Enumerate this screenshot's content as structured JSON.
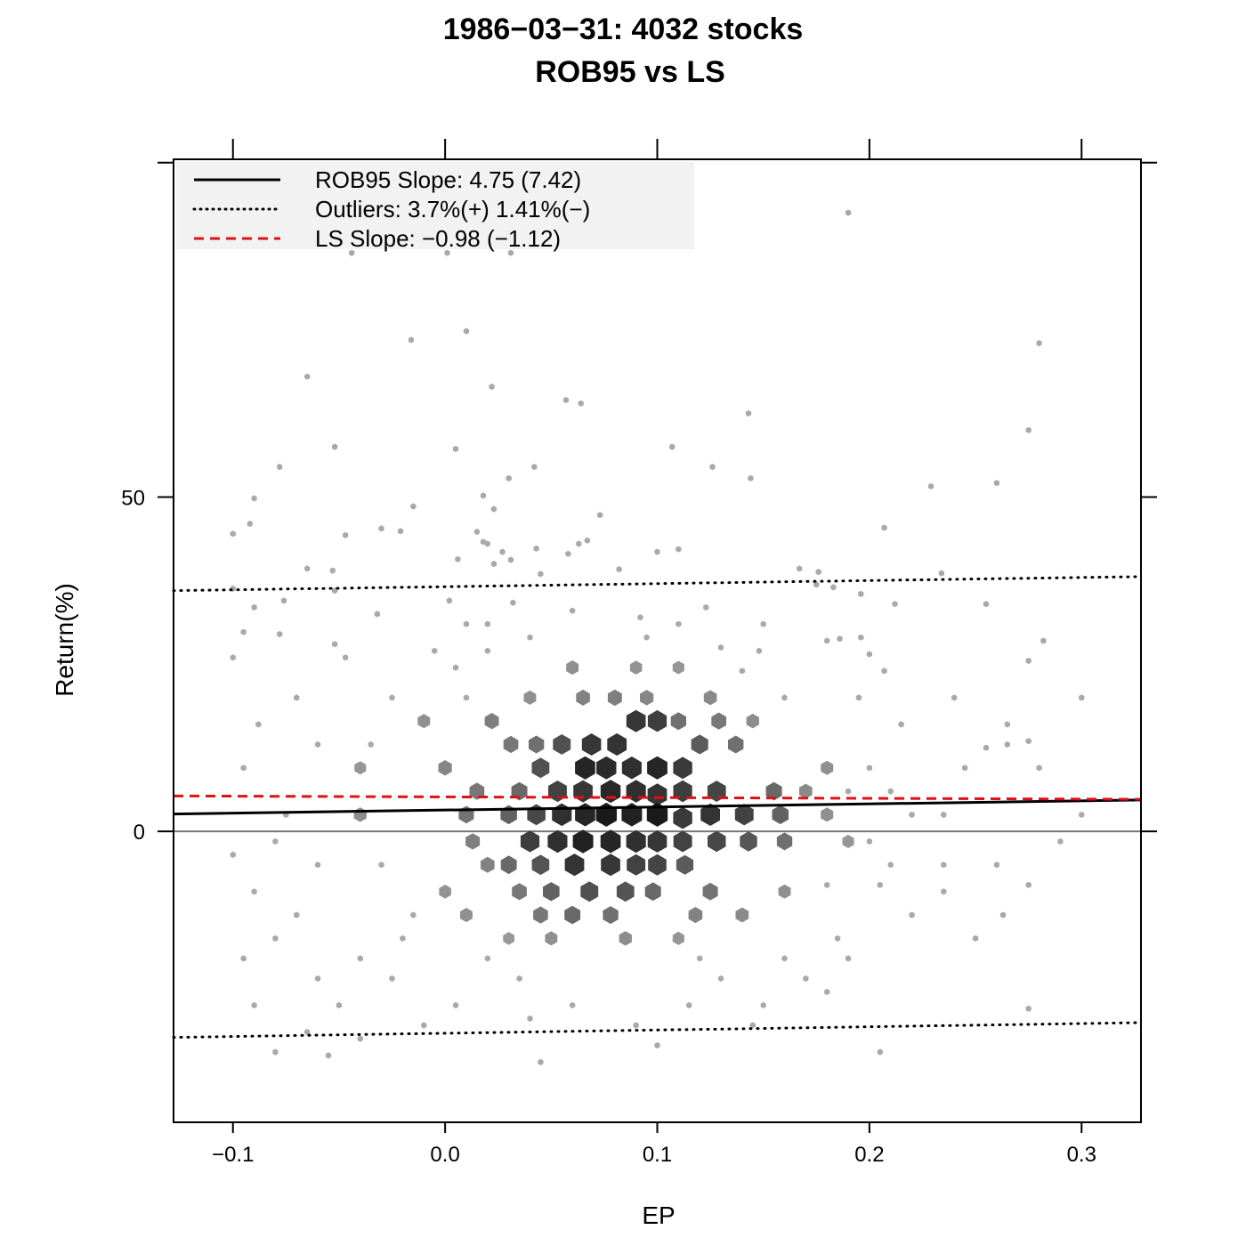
{
  "chart_data": {
    "type": "scatter",
    "title": [
      "1986−03−31: 4032 stocks",
      "ROB95 vs LS"
    ],
    "xlabel": "EP",
    "ylabel": "Return(%)",
    "xlim": [
      -0.128,
      0.328
    ],
    "ylim": [
      -43.5,
      100.5
    ],
    "x_ticks": [
      -0.1,
      0.0,
      0.1,
      0.2,
      0.3
    ],
    "x_tick_labels": [
      "−0.1",
      "0.0",
      "0.1",
      "0.2",
      "0.3"
    ],
    "y_ticks": [
      0,
      50
    ],
    "y_tick_labels": [
      "0",
      "50"
    ],
    "y_axis_ticks_all": [
      0,
      50,
      100
    ],
    "zero_line": 0,
    "legend": {
      "position": "top-left",
      "background": "#f2f2f2",
      "entries": [
        {
          "label": "ROB95 Slope: 4.75 (7.42)",
          "style": "solid",
          "color": "#000000"
        },
        {
          "label": "Outliers: 3.7%(+)  1.41%(−)",
          "style": "dotted",
          "color": "#000000"
        },
        {
          "label": "LS Slope: −0.98 (−1.12)",
          "style": "dashed",
          "color": "#e0101a"
        }
      ]
    },
    "lines": {
      "rob95": {
        "x": [
          -0.128,
          0.328
        ],
        "y": [
          2.6,
          4.7
        ],
        "color": "#000000"
      },
      "ls": {
        "x": [
          -0.128,
          0.328
        ],
        "y": [
          5.3,
          4.8
        ],
        "color": "#e0101a"
      },
      "outlier_upper": {
        "x": [
          -0.128,
          0.328
        ],
        "y": [
          36.0,
          38.1
        ],
        "color": "#000000"
      },
      "outlier_lower": {
        "x": [
          -0.128,
          0.328
        ],
        "y": [
          -30.8,
          -28.6
        ],
        "color": "#000000"
      }
    },
    "hexbin": {
      "x_step": 0.01,
      "y_step": 2.76,
      "color_light": "#aaaaaa",
      "color_dark": "#1a1a1a",
      "max_count": 100,
      "cells": [
        [
          0.069,
          13.0,
          80
        ],
        [
          0.081,
          13.0,
          82
        ],
        [
          0.09,
          16.5,
          80
        ],
        [
          0.1,
          16.5,
          75
        ],
        [
          0.055,
          13.0,
          62
        ],
        [
          0.066,
          9.5,
          92
        ],
        [
          0.076,
          9.5,
          88
        ],
        [
          0.088,
          9.5,
          85
        ],
        [
          0.1,
          9.5,
          92
        ],
        [
          0.112,
          9.5,
          78
        ],
        [
          0.045,
          9.5,
          62
        ],
        [
          0.053,
          6.0,
          72
        ],
        [
          0.065,
          6.0,
          80
        ],
        [
          0.078,
          6.0,
          90
        ],
        [
          0.09,
          6.0,
          85
        ],
        [
          0.1,
          5.5,
          82
        ],
        [
          0.112,
          6.0,
          75
        ],
        [
          0.128,
          6.0,
          70
        ],
        [
          0.035,
          6.0,
          45
        ],
        [
          0.055,
          2.5,
          85
        ],
        [
          0.066,
          2.5,
          92
        ],
        [
          0.076,
          2.5,
          100
        ],
        [
          0.088,
          2.5,
          95
        ],
        [
          0.1,
          2.5,
          100
        ],
        [
          0.112,
          2.0,
          78
        ],
        [
          0.125,
          2.5,
          82
        ],
        [
          0.141,
          2.5,
          72
        ],
        [
          0.043,
          2.5,
          68
        ],
        [
          0.03,
          2.5,
          50
        ],
        [
          0.065,
          -1.5,
          95
        ],
        [
          0.078,
          -1.5,
          92
        ],
        [
          0.09,
          -1.5,
          85
        ],
        [
          0.1,
          -1.5,
          80
        ],
        [
          0.112,
          -1.5,
          72
        ],
        [
          0.053,
          -1.5,
          85
        ],
        [
          0.04,
          -1.5,
          75
        ],
        [
          0.128,
          -1.5,
          68
        ],
        [
          0.143,
          -1.5,
          58
        ],
        [
          0.061,
          -5.0,
          82
        ],
        [
          0.078,
          -5.0,
          80
        ],
        [
          0.09,
          -5.0,
          72
        ],
        [
          0.1,
          -5.0,
          70
        ],
        [
          0.045,
          -5.0,
          60
        ],
        [
          0.03,
          -5.0,
          45
        ],
        [
          0.113,
          -5.0,
          55
        ],
        [
          0.068,
          -9.0,
          62
        ],
        [
          0.085,
          -9.0,
          60
        ],
        [
          0.05,
          -9.0,
          50
        ],
        [
          0.098,
          -9.0,
          45
        ],
        [
          0.035,
          -9.0,
          35
        ],
        [
          0.125,
          -9.0,
          38
        ],
        [
          0.06,
          -12.5,
          45
        ],
        [
          0.078,
          -12.5,
          40
        ],
        [
          0.045,
          -12.5,
          35
        ],
        [
          0.022,
          16.5,
          30
        ],
        [
          0.031,
          13.0,
          35
        ],
        [
          0.043,
          13.0,
          40
        ],
        [
          0.12,
          13.0,
          55
        ],
        [
          0.137,
          13.0,
          40
        ],
        [
          0.11,
          16.5,
          40
        ],
        [
          0.129,
          16.5,
          35
        ],
        [
          0.155,
          6.0,
          45
        ],
        [
          0.158,
          2.5,
          50
        ],
        [
          0.16,
          -1.5,
          40
        ],
        [
          0.015,
          6.0,
          35
        ],
        [
          0.01,
          2.5,
          38
        ],
        [
          0.013,
          -1.5,
          30
        ],
        [
          0.02,
          -5.0,
          28
        ],
        [
          0.08,
          20.0,
          30
        ],
        [
          0.065,
          20.0,
          28
        ],
        [
          0.095,
          20.0,
          25
        ],
        [
          0.125,
          20.0,
          22
        ],
        [
          -0.01,
          16.5,
          18
        ],
        [
          -0.04,
          2.5,
          20
        ],
        [
          0.17,
          6.0,
          22
        ],
        [
          0.18,
          2.5,
          18
        ],
        [
          0.14,
          -12.5,
          22
        ],
        [
          0.01,
          -12.5,
          18
        ],
        [
          0.0,
          -9.0,
          16
        ],
        [
          0.16,
          -9.0,
          18
        ],
        [
          0.118,
          -12.5,
          28
        ],
        [
          0.0,
          9.5,
          25
        ],
        [
          0.18,
          9.5,
          18
        ],
        [
          0.145,
          16.5,
          20
        ],
        [
          0.04,
          20.0,
          18
        ],
        [
          0.06,
          24.5,
          18
        ],
        [
          0.09,
          24.5,
          16
        ],
        [
          0.11,
          24.5,
          14
        ],
        [
          0.085,
          -16.0,
          20
        ],
        [
          0.05,
          -16.0,
          18
        ],
        [
          0.11,
          -16.0,
          14
        ],
        [
          -0.04,
          9.5,
          14
        ],
        [
          0.19,
          -1.5,
          14
        ],
        [
          0.03,
          -16.0,
          12
        ]
      ],
      "points": [
        [
          0.19,
          92.5
        ],
        [
          -0.044,
          86.5
        ],
        [
          0.001,
          86.5
        ],
        [
          0.031,
          86.5
        ],
        [
          -0.016,
          73.5
        ],
        [
          0.01,
          74.8
        ],
        [
          0.28,
          73.0
        ],
        [
          -0.065,
          68.0
        ],
        [
          0.022,
          66.5
        ],
        [
          0.057,
          64.5
        ],
        [
          0.064,
          64.0
        ],
        [
          0.143,
          62.5
        ],
        [
          0.275,
          60.0
        ],
        [
          -0.052,
          57.5
        ],
        [
          0.005,
          57.2
        ],
        [
          0.107,
          57.5
        ],
        [
          -0.078,
          54.5
        ],
        [
          0.042,
          54.5
        ],
        [
          0.126,
          54.5
        ],
        [
          0.144,
          52.8
        ],
        [
          -0.09,
          49.8
        ],
        [
          0.229,
          51.6
        ],
        [
          0.26,
          52.1
        ],
        [
          0.03,
          52.8
        ],
        [
          0.018,
          50.2
        ],
        [
          -0.015,
          48.6
        ],
        [
          0.023,
          48.2
        ],
        [
          0.073,
          47.3
        ],
        [
          -0.1,
          44.5
        ],
        [
          -0.092,
          46.0
        ],
        [
          -0.047,
          44.3
        ],
        [
          -0.03,
          45.3
        ],
        [
          -0.021,
          44.9
        ],
        [
          0.015,
          44.8
        ],
        [
          0.207,
          45.4
        ],
        [
          0.067,
          43.5
        ],
        [
          0.063,
          43.0
        ],
        [
          0.018,
          43.3
        ],
        [
          0.02,
          43.0
        ],
        [
          0.043,
          42.3
        ],
        [
          0.11,
          42.2
        ],
        [
          0.1,
          41.8
        ],
        [
          0.027,
          41.8
        ],
        [
          0.058,
          41.5
        ],
        [
          0.006,
          40.7
        ],
        [
          0.031,
          40.6
        ],
        [
          -0.053,
          39.0
        ],
        [
          -0.065,
          39.3
        ],
        [
          0.082,
          39.2
        ],
        [
          0.167,
          39.3
        ],
        [
          0.176,
          38.8
        ],
        [
          0.234,
          38.6
        ],
        [
          0.045,
          38.5
        ],
        [
          0.023,
          40.0
        ],
        [
          0.175,
          36.9
        ],
        [
          -0.1,
          36.3
        ],
        [
          0.183,
          36.5
        ],
        [
          0.196,
          35.5
        ],
        [
          -0.052,
          36.0
        ],
        [
          -0.076,
          34.5
        ],
        [
          0.212,
          34.0
        ],
        [
          0.255,
          34.0
        ],
        [
          0.123,
          33.5
        ],
        [
          -0.09,
          33.5
        ],
        [
          0.032,
          34.2
        ],
        [
          0.002,
          34.5
        ],
        [
          -0.032,
          32.5
        ],
        [
          0.01,
          31.0
        ],
        [
          0.092,
          32.0
        ],
        [
          -0.095,
          29.8
        ],
        [
          -0.078,
          29.5
        ],
        [
          0.196,
          29.0
        ],
        [
          0.02,
          27.0
        ],
        [
          0.282,
          28.5
        ],
        [
          -0.052,
          28.0
        ],
        [
          0.13,
          27.5
        ],
        [
          0.186,
          28.8
        ],
        [
          0.18,
          28.5
        ],
        [
          0.148,
          27.0
        ],
        [
          0.2,
          26.5
        ],
        [
          -0.1,
          26.0
        ],
        [
          -0.047,
          26.0
        ],
        [
          0.275,
          25.5
        ],
        [
          0.207,
          24.0
        ],
        [
          0.005,
          24.5
        ],
        [
          0.265,
          16.0
        ],
        [
          0.265,
          13.0
        ],
        [
          0.3,
          20.0
        ],
        [
          0.24,
          20.0
        ],
        [
          0.245,
          9.5
        ],
        [
          0.255,
          12.5
        ],
        [
          0.275,
          13.5
        ],
        [
          0.28,
          9.5
        ],
        [
          0.29,
          -1.5
        ],
        [
          0.3,
          2.5
        ],
        [
          0.235,
          2.5
        ],
        [
          0.235,
          -5.0
        ],
        [
          0.235,
          -9.0
        ],
        [
          0.26,
          -5.0
        ],
        [
          0.275,
          -8.0
        ],
        [
          0.263,
          -12.5
        ],
        [
          0.22,
          -12.5
        ],
        [
          0.25,
          -16.0
        ],
        [
          0.21,
          -5.0
        ],
        [
          0.205,
          -8.0
        ],
        [
          0.185,
          -16.0
        ],
        [
          -0.1,
          -3.5
        ],
        [
          -0.09,
          -9.0
        ],
        [
          -0.08,
          -16.0
        ],
        [
          -0.095,
          -19.0
        ],
        [
          -0.07,
          -12.5
        ],
        [
          -0.06,
          -22.0
        ],
        [
          -0.05,
          -26.0
        ],
        [
          -0.065,
          -30.0
        ],
        [
          -0.08,
          -33.0
        ],
        [
          -0.09,
          -26.0
        ],
        [
          -0.055,
          -33.5
        ],
        [
          -0.04,
          -31.0
        ],
        [
          -0.04,
          -19.0
        ],
        [
          -0.025,
          -22.0
        ],
        [
          -0.01,
          -29.0
        ],
        [
          0.005,
          -26.0
        ],
        [
          0.02,
          -19.0
        ],
        [
          0.035,
          -22.0
        ],
        [
          0.04,
          -28.0
        ],
        [
          0.045,
          -34.5
        ],
        [
          0.06,
          -26.0
        ],
        [
          0.09,
          -29.0
        ],
        [
          0.1,
          -32.0
        ],
        [
          0.115,
          -26.0
        ],
        [
          0.13,
          -22.0
        ],
        [
          0.15,
          -26.0
        ],
        [
          0.145,
          -29.0
        ],
        [
          0.17,
          -22.0
        ],
        [
          0.19,
          -19.0
        ],
        [
          0.205,
          -33.0
        ],
        [
          0.275,
          -26.5
        ],
        [
          0.18,
          -24.0
        ],
        [
          0.16,
          -19.0
        ],
        [
          0.12,
          -19.0
        ],
        [
          -0.02,
          -16.0
        ],
        [
          -0.015,
          -12.5
        ],
        [
          -0.03,
          -5.0
        ],
        [
          -0.06,
          -5.0
        ],
        [
          -0.075,
          2.5
        ],
        [
          -0.08,
          -1.5
        ],
        [
          -0.095,
          9.5
        ],
        [
          -0.088,
          16.0
        ],
        [
          -0.06,
          13.0
        ],
        [
          -0.07,
          20.0
        ],
        [
          -0.035,
          13.0
        ],
        [
          -0.025,
          20.0
        ],
        [
          0.01,
          20.0
        ],
        [
          -0.005,
          27.0
        ],
        [
          0.02,
          31.0
        ],
        [
          0.04,
          29.0
        ],
        [
          0.06,
          33.0
        ],
        [
          0.095,
          29.0
        ],
        [
          0.11,
          31.0
        ],
        [
          0.15,
          31.0
        ],
        [
          0.14,
          24.0
        ],
        [
          0.16,
          20.0
        ],
        [
          0.195,
          20.0
        ],
        [
          0.215,
          16.0
        ],
        [
          0.2,
          9.5
        ],
        [
          0.21,
          6.0
        ],
        [
          0.19,
          6.0
        ],
        [
          0.22,
          2.5
        ],
        [
          0.2,
          -1.5
        ],
        [
          0.18,
          -8.0
        ]
      ]
    }
  }
}
